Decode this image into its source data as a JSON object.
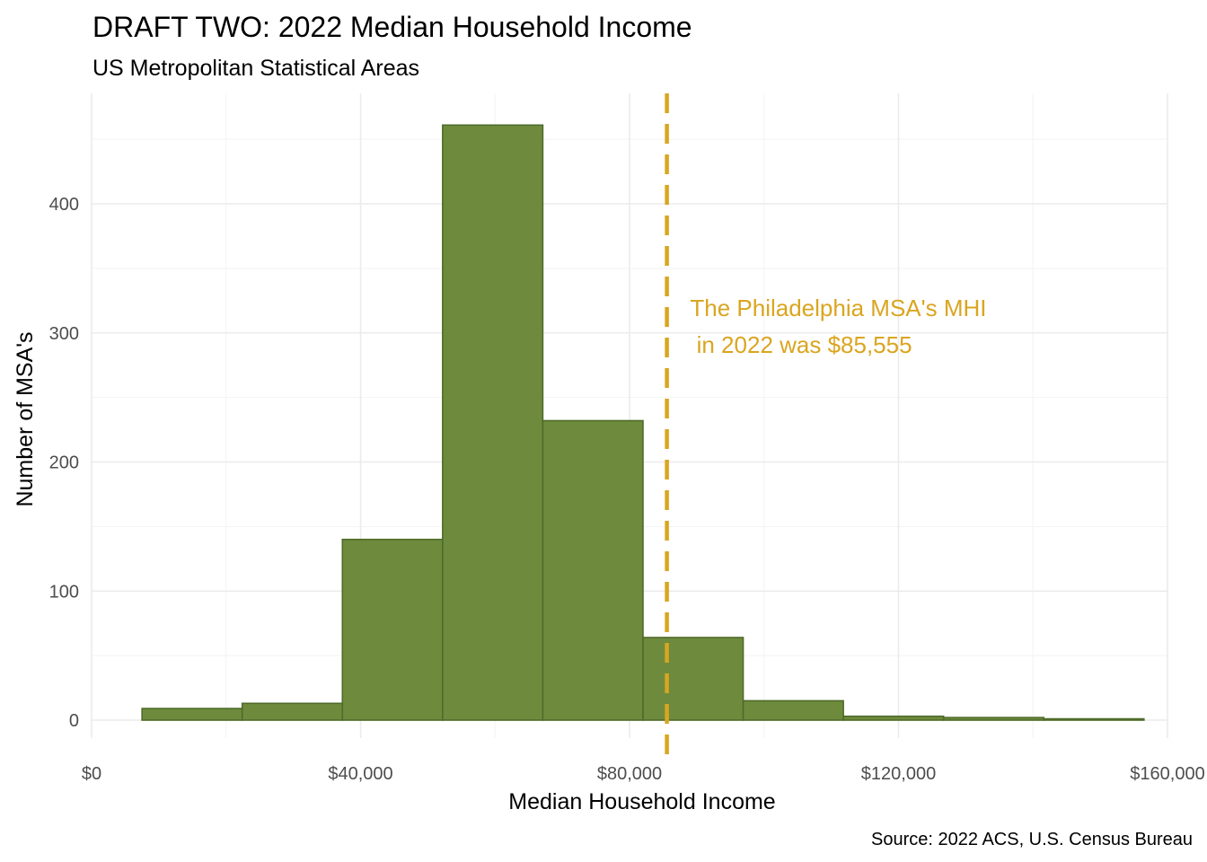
{
  "chart_data": {
    "type": "bar",
    "title": "DRAFT TWO: 2022 Median Household Income",
    "subtitle": "US Metropolitan Statistical Areas",
    "xlabel": "Median Household Income",
    "ylabel": "Number of MSA's",
    "caption": "Source: 2022 ACS, U.S. Census Bureau",
    "xlim": [
      0,
      160000
    ],
    "ylim": [
      0,
      480
    ],
    "x_ticks": [
      0,
      40000,
      80000,
      120000,
      160000
    ],
    "x_tick_labels": [
      "$0",
      "$40,000",
      "$80,000",
      "$120,000",
      "$160,000"
    ],
    "x_minor_ticks": [
      20000,
      60000,
      100000,
      140000
    ],
    "y_ticks": [
      0,
      100,
      200,
      300,
      400
    ],
    "y_tick_labels": [
      "0",
      "100",
      "200",
      "300",
      "400"
    ],
    "y_minor_ticks": [
      50,
      150,
      250,
      350,
      450
    ],
    "grid": true,
    "legend": "none",
    "bar_color": "#6e8b3d",
    "bar_outline": "#4f6b2a",
    "bins": [
      {
        "x0": 7500,
        "x1": 22400,
        "count": 9
      },
      {
        "x0": 22400,
        "x1": 37300,
        "count": 13
      },
      {
        "x0": 37300,
        "x1": 52200,
        "count": 140
      },
      {
        "x0": 52200,
        "x1": 67100,
        "count": 461
      },
      {
        "x0": 67100,
        "x1": 82000,
        "count": 232
      },
      {
        "x0": 82000,
        "x1": 96900,
        "count": 64
      },
      {
        "x0": 96900,
        "x1": 111800,
        "count": 15
      },
      {
        "x0": 111800,
        "x1": 126700,
        "count": 3
      },
      {
        "x0": 126700,
        "x1": 141600,
        "count": 2
      },
      {
        "x0": 141600,
        "x1": 156500,
        "count": 1
      }
    ],
    "reference_line": {
      "x": 85555,
      "color": "#daa520",
      "style": "dashed"
    },
    "annotation": {
      "lines": [
        "The Philadelphia MSA's MHI",
        " in 2022 was $85,555"
      ],
      "color": "#daa520",
      "x": 89000,
      "y": 313
    }
  }
}
